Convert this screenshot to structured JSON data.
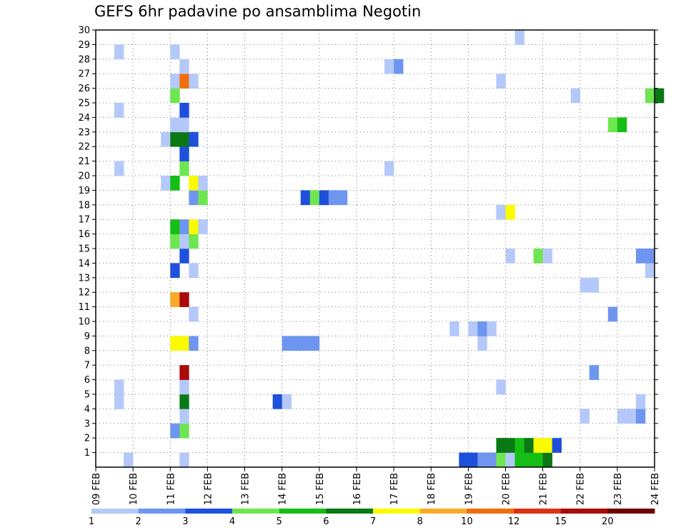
{
  "chart_data": {
    "type": "heatmap",
    "title": "GEFS 6hr padavine po ansamblima Negotin",
    "xlabel": "",
    "ylabel": "",
    "x_tick_labels": [
      "09 FEB",
      "10 FEB",
      "11 FEB",
      "12 FEB",
      "13 FEB",
      "14 FEB",
      "15 FEB",
      "16 FEB",
      "17 FEB",
      "18 FEB",
      "19 FEB",
      "20 FEB",
      "21 FEB",
      "22 FEB",
      "23 FEB",
      "24 FEB"
    ],
    "y_tick_labels": [
      "1",
      "2",
      "3",
      "4",
      "5",
      "6",
      "7",
      "8",
      "9",
      "10",
      "11",
      "12",
      "13",
      "14",
      "15",
      "16",
      "17",
      "18",
      "19",
      "20",
      "21",
      "22",
      "23",
      "24",
      "25",
      "26",
      "27",
      "28",
      "29",
      "30"
    ],
    "xlim_days": [
      0,
      15
    ],
    "ylim_members": [
      0,
      30
    ],
    "grid": "dotted",
    "step_days": 0.25,
    "colorbar": {
      "colors": [
        "#b4c8fa",
        "#6e96f0",
        "#1e50dc",
        "#6ee650",
        "#14be14",
        "#0a7814",
        "#fafa00",
        "#faaa28",
        "#f06e0a",
        "#dc3214",
        "#aa0a0a",
        "#6e0000"
      ],
      "tick_labels": [
        "1",
        "2",
        "3",
        "4",
        "5",
        "6",
        "7",
        "8",
        "10",
        "12",
        "15",
        "20"
      ]
    },
    "cells": [
      [
        0,
        0.75,
        0
      ],
      [
        0,
        2.25,
        0
      ],
      [
        0,
        9.75,
        2
      ],
      [
        0,
        10.0,
        2
      ],
      [
        0,
        10.25,
        1
      ],
      [
        0,
        10.5,
        1
      ],
      [
        0,
        10.75,
        3
      ],
      [
        0,
        11.0,
        0
      ],
      [
        0,
        11.25,
        4
      ],
      [
        0,
        11.5,
        4
      ],
      [
        0,
        11.75,
        4
      ],
      [
        0,
        12.0,
        5
      ],
      [
        1,
        10.75,
        5
      ],
      [
        1,
        11.0,
        5
      ],
      [
        1,
        11.25,
        4
      ],
      [
        1,
        11.5,
        5
      ],
      [
        1,
        11.75,
        6
      ],
      [
        1,
        12.0,
        6
      ],
      [
        1,
        12.25,
        2
      ],
      [
        2,
        2.0,
        1
      ],
      [
        2,
        2.25,
        3
      ],
      [
        3,
        2.25,
        0
      ],
      [
        3,
        13.0,
        0
      ],
      [
        3,
        14.0,
        0
      ],
      [
        3,
        14.25,
        0
      ],
      [
        3,
        14.5,
        1
      ],
      [
        4,
        0.5,
        0
      ],
      [
        4,
        2.25,
        5
      ],
      [
        4,
        4.75,
        2
      ],
      [
        4,
        5.0,
        0
      ],
      [
        4,
        14.5,
        0
      ],
      [
        5,
        0.5,
        0
      ],
      [
        5,
        2.25,
        0
      ],
      [
        5,
        10.75,
        0
      ],
      [
        6,
        2.25,
        10
      ],
      [
        6,
        13.25,
        1
      ],
      [
        8,
        2.0,
        6
      ],
      [
        8,
        2.25,
        6
      ],
      [
        8,
        2.5,
        1
      ],
      [
        8,
        5.0,
        1
      ],
      [
        8,
        5.25,
        1
      ],
      [
        8,
        5.5,
        1
      ],
      [
        8,
        5.75,
        1
      ],
      [
        8,
        10.25,
        0
      ],
      [
        9,
        9.5,
        0
      ],
      [
        9,
        10.0,
        0
      ],
      [
        9,
        10.25,
        1
      ],
      [
        9,
        10.5,
        0
      ],
      [
        10,
        2.5,
        0
      ],
      [
        10,
        13.75,
        1
      ],
      [
        11,
        2.0,
        7
      ],
      [
        11,
        2.25,
        10
      ],
      [
        12,
        13.0,
        0
      ],
      [
        12,
        13.25,
        0
      ],
      [
        13,
        2.0,
        2
      ],
      [
        13,
        2.5,
        0
      ],
      [
        13,
        14.75,
        0
      ],
      [
        14,
        2.25,
        2
      ],
      [
        14,
        11.0,
        0
      ],
      [
        14,
        11.75,
        3
      ],
      [
        14,
        12.0,
        0
      ],
      [
        14,
        14.5,
        1
      ],
      [
        14,
        14.75,
        1
      ],
      [
        15,
        2.0,
        3
      ],
      [
        15,
        2.25,
        0
      ],
      [
        15,
        2.5,
        3
      ],
      [
        16,
        2.0,
        4
      ],
      [
        16,
        2.25,
        1
      ],
      [
        16,
        2.5,
        6
      ],
      [
        16,
        2.75,
        0
      ],
      [
        17,
        10.75,
        0
      ],
      [
        17,
        11.0,
        6
      ],
      [
        18,
        2.5,
        1
      ],
      [
        18,
        2.75,
        3
      ],
      [
        18,
        5.5,
        2
      ],
      [
        18,
        5.75,
        3
      ],
      [
        18,
        6.0,
        2
      ],
      [
        18,
        6.25,
        1
      ],
      [
        18,
        6.5,
        1
      ],
      [
        19,
        1.75,
        0
      ],
      [
        19,
        2.0,
        4
      ],
      [
        19,
        2.5,
        6
      ],
      [
        19,
        2.75,
        0
      ],
      [
        20,
        0.5,
        0
      ],
      [
        20,
        2.25,
        3
      ],
      [
        20,
        7.75,
        0
      ],
      [
        21,
        2.25,
        2
      ],
      [
        22,
        1.75,
        0
      ],
      [
        22,
        2.0,
        5
      ],
      [
        22,
        2.25,
        5
      ],
      [
        22,
        2.5,
        2
      ],
      [
        23,
        2.0,
        0
      ],
      [
        23,
        2.25,
        0
      ],
      [
        23,
        13.75,
        3
      ],
      [
        23,
        14.0,
        4
      ],
      [
        24,
        0.5,
        0
      ],
      [
        24,
        2.25,
        2
      ],
      [
        25,
        2.0,
        3
      ],
      [
        25,
        12.75,
        0
      ],
      [
        25,
        14.75,
        3
      ],
      [
        25,
        15.0,
        5
      ],
      [
        26,
        2.0,
        0
      ],
      [
        26,
        2.25,
        8
      ],
      [
        26,
        2.5,
        0
      ],
      [
        26,
        10.75,
        0
      ],
      [
        27,
        2.25,
        0
      ],
      [
        27,
        7.75,
        0
      ],
      [
        27,
        8.0,
        1
      ],
      [
        28,
        0.5,
        0
      ],
      [
        28,
        2.0,
        0
      ],
      [
        29,
        11.25,
        0
      ]
    ]
  }
}
